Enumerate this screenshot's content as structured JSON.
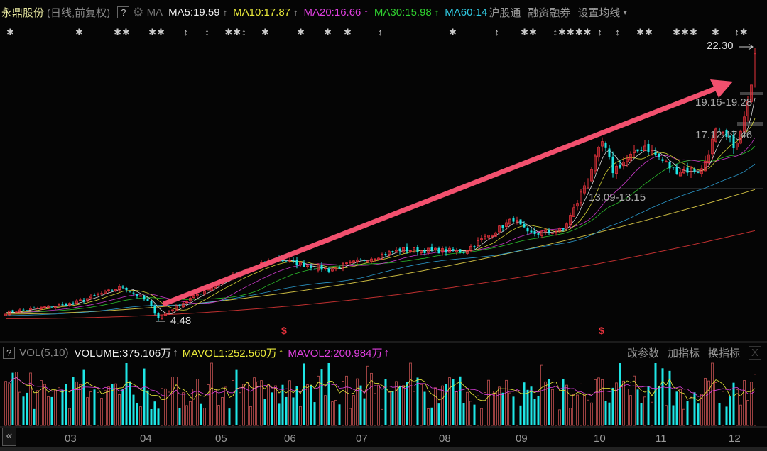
{
  "header": {
    "stock_name": "永鼎股份",
    "period": "(日线,前复权)",
    "help": "?",
    "ma_label": "MA",
    "ma5": "MA5:19.59",
    "ma10": "MA10:17.87",
    "ma20": "MA20:16.66",
    "ma30": "MA30:15.98",
    "ma60": "MA60:14",
    "up_arrow": "↑",
    "link1": "沪股通",
    "link2": "融资融券",
    "settings": "设置均线",
    "settings_caret": "▾"
  },
  "price_labels": {
    "high": "22.30",
    "low": "4.48",
    "level1": "19.16-19.28",
    "level2": "17.12-17.46",
    "level3": "13.09-13.15"
  },
  "volume_panel": {
    "help": "?",
    "title": "VOL(5,10)",
    "volume": "VOLUME:375.106万",
    "mavol1": "MAVOL1:252.560万",
    "mavol2": "MAVOL2:200.984万",
    "up_arrow": "↑",
    "btn_params": "改参数",
    "btn_add": "加指标",
    "btn_switch": "换指标",
    "close": "X"
  },
  "nav": {
    "back": "«"
  },
  "months": [
    "03",
    "04",
    "05",
    "06",
    "07",
    "08",
    "09",
    "10",
    "11",
    "12"
  ],
  "colors": {
    "up": "#e8323c",
    "down": "#1ee6e6",
    "ma5": "#eeeeee",
    "ma10": "#e8e83a",
    "ma20": "#e040e0",
    "ma30": "#30d030",
    "ma60": "#30a8e0",
    "arrow": "#f2506e"
  },
  "chart_data": {
    "type": "candlestick",
    "title": "永鼎股份 (日线,前复权)",
    "ylim": [
      4.48,
      22.3
    ],
    "days": 212,
    "close_waypoints": [
      [
        0,
        5.0
      ],
      [
        19,
        5.6
      ],
      [
        33,
        6.7
      ],
      [
        40,
        5.7
      ],
      [
        43,
        4.7
      ],
      [
        49,
        5.5
      ],
      [
        61,
        7.1
      ],
      [
        76,
        8.5
      ],
      [
        91,
        7.8
      ],
      [
        111,
        9.1
      ],
      [
        129,
        9.0
      ],
      [
        143,
        11.1
      ],
      [
        147,
        10.1
      ],
      [
        157,
        10.4
      ],
      [
        161,
        12.2
      ],
      [
        168,
        16.1
      ],
      [
        171,
        14.3
      ],
      [
        180,
        15.9
      ],
      [
        188,
        14.3
      ],
      [
        196,
        14.3
      ],
      [
        200,
        16.8
      ],
      [
        206,
        15.9
      ],
      [
        209,
        18.5
      ],
      [
        211,
        21.9
      ]
    ],
    "high": 22.3,
    "low": 4.48,
    "last_volume_wan": 375.106,
    "mavol1_wan": 252.56,
    "mavol2_wan": 200.984
  }
}
